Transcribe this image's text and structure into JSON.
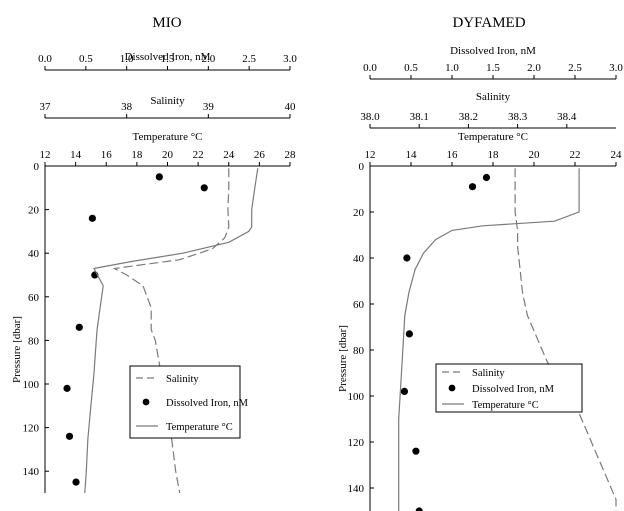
{
  "chart_data": [
    {
      "type": "line",
      "title": "MIO",
      "ylabel": "Pressure [dbar]",
      "ylim": [
        150,
        0
      ],
      "yticks": [
        0,
        20,
        40,
        60,
        80,
        100,
        120,
        140
      ],
      "axes": {
        "iron": {
          "label": "Dissolved Iron, nM",
          "range": [
            0.0,
            3.0
          ],
          "ticks": [
            "0.0",
            "0.5",
            "1.0",
            "1.5",
            "2.0",
            "2.5",
            "3.0"
          ]
        },
        "salinity": {
          "label": "Salinity",
          "range": [
            37,
            40
          ],
          "ticks": [
            "37",
            "38",
            "39",
            "40"
          ]
        },
        "temperature": {
          "label": "Temperature °C",
          "range": [
            12,
            28
          ],
          "ticks": [
            "12",
            "14",
            "16",
            "18",
            "20",
            "22",
            "24",
            "26",
            "28"
          ]
        }
      },
      "legend": {
        "position": "bottom-right",
        "entries": [
          "Salinity",
          "Dissolved Iron, nM",
          "Temperature °C"
        ]
      },
      "series": [
        {
          "name": "Salinity",
          "axis": "salinity",
          "style": "dashed",
          "x": [
            39.25,
            39.25,
            39.24,
            39.25,
            39.2,
            39.05,
            38.65,
            37.85,
            38.0,
            38.2,
            38.3,
            38.3,
            38.35,
            38.42,
            38.5,
            38.55,
            38.6,
            38.65
          ],
          "y": [
            1,
            10,
            20,
            28,
            33,
            38,
            43,
            47,
            50,
            55,
            65,
            75,
            80,
            95,
            110,
            125,
            140,
            150
          ]
        },
        {
          "name": "Dissolved Iron, nM",
          "axis": "iron",
          "style": "markers",
          "x": [
            1.4,
            1.95,
            0.58,
            0.61,
            0.42,
            0.27,
            0.3,
            0.38
          ],
          "y": [
            5,
            10,
            24,
            50,
            74,
            102,
            124,
            145
          ]
        },
        {
          "name": "Temperature °C",
          "axis": "temperature",
          "style": "solid",
          "x": [
            25.9,
            25.7,
            25.5,
            25.5,
            25.3,
            24.0,
            21.0,
            17.5,
            15.2,
            15.8,
            15.6,
            15.4,
            15.3,
            15.2,
            15.0,
            14.8,
            14.7,
            14.6
          ],
          "y": [
            1,
            10,
            20,
            28,
            30,
            35,
            40,
            44,
            47,
            55,
            65,
            75,
            85,
            95,
            110,
            125,
            140,
            150
          ]
        }
      ]
    },
    {
      "type": "line",
      "title": "DYFAMED",
      "ylabel": "Pressure [dbar]",
      "ylim": [
        150,
        0
      ],
      "yticks": [
        0,
        20,
        40,
        60,
        80,
        100,
        120,
        140
      ],
      "axes": {
        "iron": {
          "label": "Dissolved Iron, nM",
          "range": [
            0.0,
            3.0
          ],
          "ticks": [
            "0.0",
            "0.5",
            "1.0",
            "1.5",
            "2.0",
            "2.5",
            "3.0"
          ]
        },
        "salinity": {
          "label": "Salinity",
          "range": [
            38.0,
            38.5
          ],
          "ticks": [
            "38.0",
            "38.1",
            "38.2",
            "38.3",
            "38.4"
          ]
        },
        "temperature": {
          "label": "Temperature °C",
          "range": [
            12,
            24
          ],
          "ticks": [
            "12",
            "14",
            "16",
            "18",
            "20",
            "22",
            "24"
          ]
        }
      },
      "legend": {
        "position": "bottom-right",
        "entries": [
          "Salinity",
          "Dissolved Iron, nM",
          "Temperature °C"
        ]
      },
      "series": [
        {
          "name": "Salinity",
          "axis": "salinity",
          "style": "dashed",
          "x": [
            38.295,
            38.295,
            38.295,
            38.3,
            38.3,
            38.305,
            38.31,
            38.32,
            38.34,
            38.36,
            38.39,
            38.42,
            38.44,
            38.46,
            38.48,
            38.5,
            38.5
          ],
          "y": [
            1,
            10,
            20,
            28,
            35,
            45,
            55,
            65,
            75,
            85,
            95,
            105,
            115,
            125,
            135,
            145,
            150
          ]
        },
        {
          "name": "Dissolved Iron, nM",
          "axis": "iron",
          "style": "markers",
          "x": [
            1.42,
            1.25,
            0.45,
            0.48,
            0.42,
            0.56,
            0.6
          ],
          "y": [
            5,
            9,
            40,
            73,
            98,
            124,
            150
          ]
        },
        {
          "name": "Temperature °C",
          "axis": "temperature",
          "style": "solid",
          "x": [
            22.2,
            22.2,
            22.2,
            21.0,
            17.5,
            16.0,
            15.2,
            14.6,
            14.2,
            13.9,
            13.7,
            13.6,
            13.5,
            13.4,
            13.4,
            13.4
          ],
          "y": [
            1,
            10,
            20,
            24,
            26,
            28,
            32,
            38,
            45,
            55,
            65,
            80,
            95,
            110,
            130,
            150
          ]
        }
      ]
    }
  ]
}
